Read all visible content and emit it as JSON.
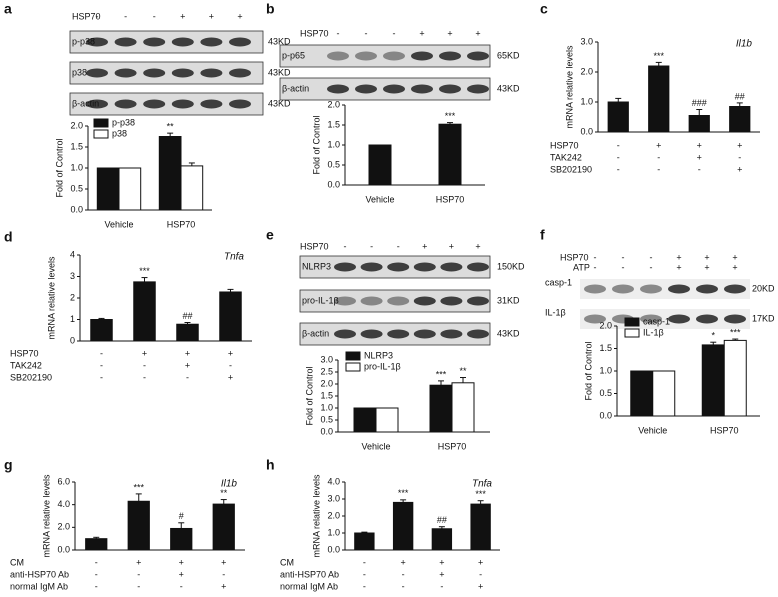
{
  "chart_data": [
    {
      "type": "grouped_bar",
      "panel": "a",
      "blot": {
        "header": [
          {
            "label": "HSP70",
            "signs": [
              "-",
              "-",
              "-",
              "+",
              "+",
              "+"
            ]
          }
        ],
        "rows": [
          {
            "label": "p-p38",
            "size": "43KD"
          },
          {
            "label": "p38",
            "size": "43KD"
          },
          {
            "label": "β-actin",
            "size": "43KD"
          }
        ]
      },
      "y_label": "Fold of Control",
      "categories": [
        "Vehicle",
        "HSP70"
      ],
      "series": [
        {
          "name": "p-p38",
          "color": "#111111",
          "values": [
            1,
            1.75
          ],
          "errors": [
            0,
            0.08
          ],
          "annotations": [
            null,
            "**"
          ]
        },
        {
          "name": "p38",
          "color": "#ffffff",
          "values": [
            1,
            1.05
          ],
          "errors": [
            0,
            0.07
          ],
          "annotations": [
            null,
            null
          ]
        }
      ],
      "ylim": [
        0,
        2
      ],
      "yticks": [
        {
          "value": 0,
          "label": "0.0"
        },
        0.5,
        {
          "value": 1,
          "label": "1.0"
        },
        1.5,
        {
          "value": 2,
          "label": "2.0"
        }
      ],
      "legend": "upper left"
    },
    {
      "type": "bar",
      "panel": "b",
      "blot": {
        "header": [
          {
            "label": "HSP70",
            "signs": [
              "-",
              "-",
              "-",
              "+",
              "+",
              "+"
            ]
          }
        ],
        "rows": [
          {
            "label": "p-p65",
            "size": "65KD"
          },
          {
            "label": "β-actin",
            "size": "43KD"
          }
        ]
      },
      "y_label": "Fold of Control",
      "categories": [
        "Vehicle",
        "HSP70"
      ],
      "color": "#111111",
      "values": [
        1,
        1.52
      ],
      "errors": [
        0,
        0.04
      ],
      "annotations": [
        null,
        "***"
      ],
      "ylim": [
        0,
        2
      ],
      "yticks": [
        {
          "value": 0,
          "label": "0.0"
        },
        0.5,
        {
          "value": 1,
          "label": "1.0"
        },
        1.5,
        {
          "value": 2,
          "label": "2.0"
        }
      ]
    },
    {
      "type": "bar",
      "panel": "c",
      "gene": "Il1b",
      "y_label": "mRNA relative levels",
      "color": "#111111",
      "values": [
        1,
        2.2,
        0.55,
        0.85
      ],
      "errors": [
        0.12,
        0.12,
        0.2,
        0.12
      ],
      "annotations": [
        null,
        "***",
        "###",
        "##"
      ],
      "conditions": [
        {
          "label": "HSP70",
          "signs": [
            "-",
            "+",
            "+",
            "+"
          ]
        },
        {
          "label": "TAK242",
          "signs": [
            "-",
            "-",
            "+",
            "-"
          ]
        },
        {
          "label": "SB202190",
          "signs": [
            "-",
            "-",
            "-",
            "+"
          ]
        }
      ],
      "ylim": [
        0,
        3
      ],
      "yticks": [
        {
          "value": 0,
          "label": "0.0"
        },
        {
          "value": 1,
          "label": "1.0"
        },
        {
          "value": 2,
          "label": "2.0"
        },
        {
          "value": 3,
          "label": "3.0"
        }
      ]
    },
    {
      "type": "bar",
      "panel": "d",
      "gene": "Tnfa",
      "y_label": "mRNA relative levels",
      "color": "#111111",
      "values": [
        1,
        2.75,
        0.78,
        2.28
      ],
      "errors": [
        0.05,
        0.2,
        0.08,
        0.12
      ],
      "annotations": [
        null,
        "***",
        "##",
        null
      ],
      "conditions": [
        {
          "label": "HSP70",
          "signs": [
            "-",
            "+",
            "+",
            "+"
          ]
        },
        {
          "label": "TAK242",
          "signs": [
            "-",
            "-",
            "+",
            "-"
          ]
        },
        {
          "label": "SB202190",
          "signs": [
            "-",
            "-",
            "-",
            "+"
          ]
        }
      ],
      "ylim": [
        0,
        4
      ],
      "yticks": [
        0,
        1,
        2,
        3,
        4
      ]
    },
    {
      "type": "grouped_bar",
      "panel": "e",
      "blot": {
        "header": [
          {
            "label": "HSP70",
            "signs": [
              "-",
              "-",
              "-",
              "+",
              "+",
              "+"
            ]
          }
        ],
        "rows": [
          {
            "label": "NLRP3",
            "size": "150KD"
          },
          {
            "label": "pro-IL-1β",
            "size": "31KD"
          },
          {
            "label": "β-actin",
            "size": "43KD"
          }
        ]
      },
      "y_label": "Fold of Control",
      "categories": [
        "Vehicle",
        "HSP70"
      ],
      "series": [
        {
          "name": "NLRP3",
          "color": "#111111",
          "values": [
            1,
            1.95
          ],
          "errors": [
            0,
            0.18
          ],
          "annotations": [
            null,
            "***"
          ]
        },
        {
          "name": "pro-IL-1β",
          "color": "#ffffff",
          "values": [
            1,
            2.05
          ],
          "errors": [
            0,
            0.22
          ],
          "annotations": [
            null,
            "**"
          ]
        }
      ],
      "ylim": [
        0,
        3
      ],
      "yticks": [
        {
          "value": 0,
          "label": "0.0"
        },
        0.5,
        {
          "value": 1,
          "label": "1.0"
        },
        1.5,
        {
          "value": 2,
          "label": "2.0"
        },
        2.5,
        {
          "value": 3,
          "label": "3.0"
        }
      ],
      "legend": "upper left"
    },
    {
      "type": "grouped_bar",
      "panel": "f",
      "blot": {
        "header": [
          {
            "label": "HSP70",
            "signs": [
              "-",
              "-",
              "-",
              "+",
              "+",
              "+"
            ]
          },
          {
            "label": "ATP",
            "signs": [
              "-",
              "-",
              "-",
              "+",
              "+",
              "+"
            ]
          }
        ],
        "rows": [
          {
            "label": "casp-1",
            "size": "20KD"
          },
          {
            "label": "IL-1β",
            "size": "17KD"
          }
        ]
      },
      "y_label": "Fold of Control",
      "categories": [
        "Vehicle",
        "HSP70"
      ],
      "series": [
        {
          "name": "casp-1",
          "color": "#111111",
          "values": [
            1,
            1.58
          ],
          "errors": [
            0,
            0.06
          ],
          "annotations": [
            null,
            "*"
          ]
        },
        {
          "name": "IL-1β",
          "color": "#ffffff",
          "values": [
            1,
            1.68
          ],
          "errors": [
            0,
            0.03
          ],
          "annotations": [
            null,
            "***"
          ]
        }
      ],
      "ylim": [
        0,
        2
      ],
      "yticks": [
        {
          "value": 0,
          "label": "0.0"
        },
        0.5,
        {
          "value": 1,
          "label": "1.0"
        },
        1.5,
        {
          "value": 2,
          "label": "2.0"
        }
      ],
      "legend": "upper left"
    },
    {
      "type": "bar",
      "panel": "g",
      "gene": "Il1b",
      "y_label": "mRNA relative levels",
      "color": "#111111",
      "values": [
        1,
        4.3,
        1.9,
        4.05
      ],
      "errors": [
        0.12,
        0.65,
        0.5,
        0.4
      ],
      "annotations": [
        null,
        "***",
        "#",
        "**"
      ],
      "conditions": [
        {
          "label": "CM",
          "signs": [
            "-",
            "+",
            "+",
            "+"
          ]
        },
        {
          "label": "anti-HSP70 Ab",
          "signs": [
            "-",
            "-",
            "+",
            "-"
          ]
        },
        {
          "label": "normal IgM Ab",
          "signs": [
            "-",
            "-",
            "-",
            "+"
          ]
        }
      ],
      "ylim": [
        0,
        6
      ],
      "yticks": [
        {
          "value": 0,
          "label": "0.0"
        },
        {
          "value": 2,
          "label": "2.0"
        },
        {
          "value": 4,
          "label": "4.0"
        },
        {
          "value": 6,
          "label": "6.0"
        }
      ]
    },
    {
      "type": "bar",
      "panel": "h",
      "gene": "Tnfa",
      "y_label": "mRNA relative levels",
      "color": "#111111",
      "values": [
        1,
        2.8,
        1.25,
        2.7
      ],
      "errors": [
        0.05,
        0.15,
        0.12,
        0.2
      ],
      "annotations": [
        null,
        "***",
        "##",
        "***"
      ],
      "conditions": [
        {
          "label": "CM",
          "signs": [
            "-",
            "+",
            "+",
            "+"
          ]
        },
        {
          "label": "anti-HSP70 Ab",
          "signs": [
            "-",
            "-",
            "+",
            "-"
          ]
        },
        {
          "label": "normal IgM Ab",
          "signs": [
            "-",
            "-",
            "-",
            "+"
          ]
        }
      ],
      "ylim": [
        0,
        4
      ],
      "yticks": [
        {
          "value": 0,
          "label": "0.0"
        },
        {
          "value": 1,
          "label": "1.0"
        },
        {
          "value": 2,
          "label": "2.0"
        },
        {
          "value": 3,
          "label": "3.0"
        },
        {
          "value": 4,
          "label": "4.0"
        }
      ]
    }
  ]
}
